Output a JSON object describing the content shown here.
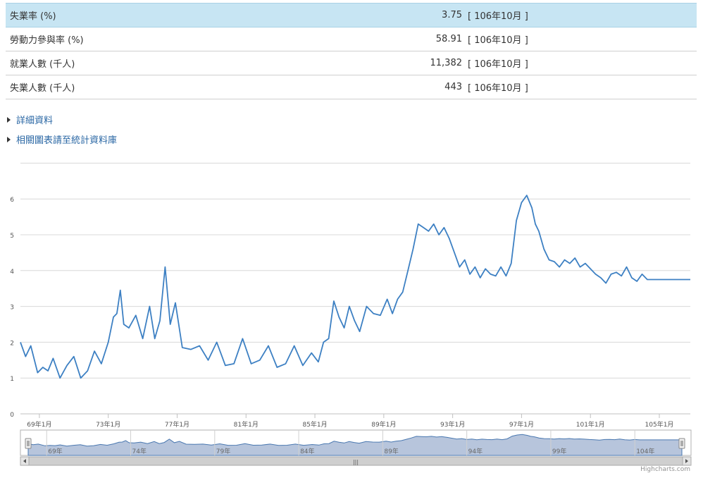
{
  "stats": [
    {
      "label": "失業率 (%)",
      "value": "3.75",
      "period": "[ 106年10月 ]",
      "highlight": true
    },
    {
      "label": "勞動力參與率 (%)",
      "value": "58.91",
      "period": "[ 106年10月 ]"
    },
    {
      "label": "就業人數 (千人)",
      "value": "11,382",
      "period": "[ 106年10月 ]"
    },
    {
      "label": "失業人數 (千人)",
      "value": "443",
      "period": "[ 106年10月 ]"
    }
  ],
  "links": {
    "details": "詳細資料",
    "database": "相關圖表請至統計資料庫"
  },
  "credit": "Highcharts.com",
  "colors": {
    "line": "#3d80c3",
    "navigator_fill": "#b7c5dc",
    "highlight_row": "#c7e5f3"
  },
  "chart_data": {
    "type": "line",
    "title": "",
    "xlabel": "",
    "ylabel": "",
    "ylim": [
      0,
      7
    ],
    "yticks": [
      "0",
      "1",
      "2",
      "3",
      "4",
      "5",
      "6"
    ],
    "xticks": [
      "69年1月",
      "73年1月",
      "77年1月",
      "81年1月",
      "85年1月",
      "89年1月",
      "93年1月",
      "97年1月",
      "101年1月",
      "105年1月"
    ],
    "navigator_ticks": [
      "69年",
      "74年",
      "79年",
      "84年",
      "89年",
      "94年",
      "99年",
      "104年"
    ],
    "x_start_year": 67.9,
    "x_end_year": 106.8,
    "series": [
      {
        "x": [
          67.9,
          68.2,
          68.5,
          68.9,
          69.2,
          69.5,
          69.8,
          70.2,
          70.6,
          71.0,
          71.4,
          71.8,
          72.2,
          72.6,
          73.0,
          73.3,
          73.5,
          73.7,
          73.9,
          74.2,
          74.6,
          75.0,
          75.4,
          75.7,
          76.0,
          76.3,
          76.6,
          76.9,
          77.3,
          77.8,
          78.3,
          78.8,
          79.3,
          79.8,
          80.3,
          80.8,
          81.3,
          81.8,
          82.3,
          82.8,
          83.3,
          83.8,
          84.3,
          84.8,
          85.2,
          85.5,
          85.8,
          86.1,
          86.4,
          86.7,
          87.0,
          87.3,
          87.6,
          88.0,
          88.4,
          88.8,
          89.2,
          89.5,
          89.8,
          90.1,
          90.4,
          90.7,
          91.0,
          91.3,
          91.6,
          91.9,
          92.2,
          92.5,
          92.8,
          93.1,
          93.4,
          93.7,
          94.0,
          94.3,
          94.6,
          94.9,
          95.2,
          95.5,
          95.8,
          96.1,
          96.4,
          96.7,
          97.0,
          97.3,
          97.6,
          97.8,
          98.0,
          98.3,
          98.6,
          98.9,
          99.2,
          99.5,
          99.8,
          100.1,
          100.4,
          100.7,
          101.0,
          101.3,
          101.6,
          101.9,
          102.2,
          102.5,
          102.8,
          103.1,
          103.4,
          103.7,
          104.0,
          104.3,
          104.6,
          104.9,
          105.2,
          105.5,
          105.8,
          106.1,
          106.4,
          106.6,
          106.8
        ],
        "values": [
          2.0,
          1.6,
          1.9,
          1.15,
          1.3,
          1.2,
          1.55,
          1.0,
          1.35,
          1.6,
          1.0,
          1.2,
          1.75,
          1.4,
          2.0,
          2.7,
          2.8,
          3.45,
          2.5,
          2.4,
          2.75,
          2.1,
          3.0,
          2.1,
          2.6,
          4.1,
          2.5,
          3.1,
          1.85,
          1.8,
          1.9,
          1.5,
          2.0,
          1.35,
          1.4,
          2.1,
          1.4,
          1.5,
          1.9,
          1.3,
          1.4,
          1.9,
          1.35,
          1.7,
          1.45,
          2.0,
          2.1,
          3.15,
          2.7,
          2.4,
          3.0,
          2.6,
          2.3,
          3.0,
          2.8,
          2.75,
          3.2,
          2.8,
          3.2,
          3.4,
          4.0,
          4.6,
          5.3,
          5.2,
          5.1,
          5.3,
          5.0,
          5.2,
          4.9,
          4.5,
          4.1,
          4.3,
          3.9,
          4.1,
          3.8,
          4.05,
          3.9,
          3.85,
          4.1,
          3.85,
          4.2,
          5.4,
          5.9,
          6.1,
          5.75,
          5.3,
          5.1,
          4.6,
          4.3,
          4.25,
          4.1,
          4.3,
          4.2,
          4.35,
          4.1,
          4.2,
          4.05,
          3.9,
          3.8,
          3.65,
          3.9,
          3.95,
          3.85,
          4.1,
          3.8,
          3.7,
          3.9,
          3.75,
          3.75,
          3.75,
          3.75,
          3.75,
          3.75,
          3.75,
          3.75,
          3.75,
          3.75
        ]
      }
    ]
  }
}
